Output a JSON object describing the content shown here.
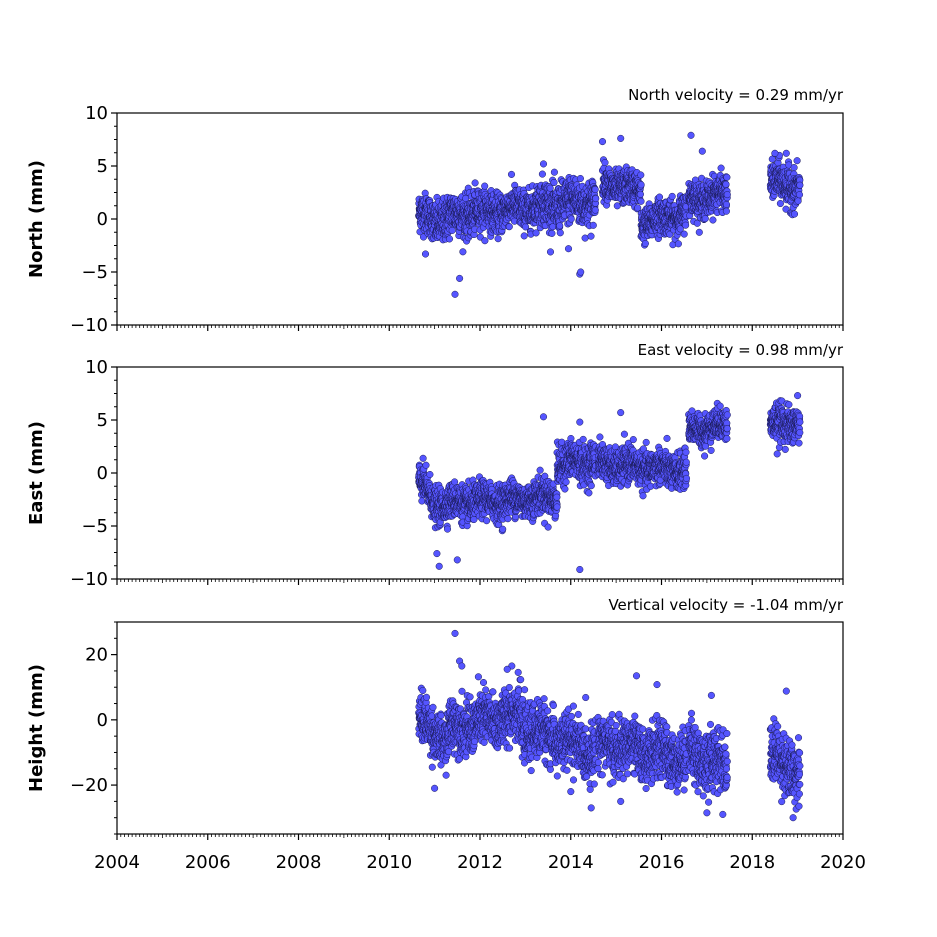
{
  "chart_data": [
    {
      "type": "scatter",
      "title": "North velocity = 0.29 mm/yr",
      "xlabel": "",
      "ylabel": "North (mm)",
      "xlim": [
        2004,
        2020
      ],
      "ylim": [
        -10,
        10
      ],
      "yticks": [
        10,
        5,
        0,
        -5,
        -10
      ],
      "ytick_labels": [
        "10",
        "5",
        "0",
        "−5",
        "−10"
      ],
      "xticks": [
        2004,
        2006,
        2008,
        2010,
        2012,
        2014,
        2016,
        2018,
        2020
      ],
      "xtick_labels": [],
      "grid": false,
      "color": "#5555ff",
      "segments": [
        {
          "start": 2010.65,
          "end": 2010.95,
          "start_mean": 0.5,
          "end_mean": 0.0,
          "spread": 1.0
        },
        {
          "start": 2010.95,
          "end": 2011.95,
          "start_mean": -0.2,
          "end_mean": 0.8,
          "spread": 1.1
        },
        {
          "start": 2011.95,
          "end": 2013.3,
          "start_mean": 0.6,
          "end_mean": 1.2,
          "spread": 1.0
        },
        {
          "start": 2013.3,
          "end": 2014.55,
          "start_mean": 1.2,
          "end_mean": 1.8,
          "spread": 1.2
        },
        {
          "start": 2014.7,
          "end": 2015.55,
          "start_mean": 3.4,
          "end_mean": 2.6,
          "spread": 0.9
        },
        {
          "start": 2015.55,
          "end": 2016.55,
          "start_mean": -0.4,
          "end_mean": 0.6,
          "spread": 0.9
        },
        {
          "start": 2016.6,
          "end": 2017.45,
          "start_mean": 1.8,
          "end_mean": 2.4,
          "spread": 0.9
        },
        {
          "start": 2018.4,
          "end": 2019.05,
          "start_mean": 3.5,
          "end_mean": 3.0,
          "spread": 1.0
        }
      ],
      "outliers": [
        [
          2011.45,
          -7.1
        ],
        [
          2011.55,
          -5.6
        ],
        [
          2014.2,
          -5.2
        ],
        [
          2014.22,
          -5.0
        ],
        [
          2013.4,
          5.2
        ],
        [
          2014.7,
          7.3
        ],
        [
          2015.1,
          7.6
        ],
        [
          2016.65,
          7.9
        ],
        [
          2016.9,
          6.4
        ],
        [
          2018.5,
          6.2
        ],
        [
          2018.75,
          6.2
        ],
        [
          2010.8,
          -3.3
        ],
        [
          2013.95,
          -2.8
        ]
      ]
    },
    {
      "type": "scatter",
      "title": "East velocity = 0.98 mm/yr",
      "xlabel": "",
      "ylabel": "East (mm)",
      "xlim": [
        2004,
        2020
      ],
      "ylim": [
        -10,
        10
      ],
      "yticks": [
        10,
        5,
        0,
        -5,
        -10
      ],
      "ytick_labels": [
        "10",
        "5",
        "0",
        "−5",
        "−10"
      ],
      "xticks": [
        2004,
        2006,
        2008,
        2010,
        2012,
        2014,
        2016,
        2018,
        2020
      ],
      "xtick_labels": [],
      "grid": false,
      "color": "#5555ff",
      "segments": [
        {
          "start": 2010.65,
          "end": 2010.95,
          "start_mean": -0.8,
          "end_mean": -2.4,
          "spread": 0.9
        },
        {
          "start": 2010.95,
          "end": 2013.7,
          "start_mean": -3.0,
          "end_mean": -2.2,
          "spread": 0.9
        },
        {
          "start": 2013.7,
          "end": 2014.55,
          "start_mean": 0.8,
          "end_mean": 1.2,
          "spread": 1.0
        },
        {
          "start": 2014.6,
          "end": 2016.55,
          "start_mean": 0.9,
          "end_mean": 0.2,
          "spread": 0.9
        },
        {
          "start": 2016.6,
          "end": 2017.45,
          "start_mean": 4.0,
          "end_mean": 4.6,
          "spread": 0.8
        },
        {
          "start": 2018.4,
          "end": 2019.05,
          "start_mean": 4.5,
          "end_mean": 4.8,
          "spread": 0.9
        }
      ],
      "outliers": [
        [
          2011.05,
          -7.6
        ],
        [
          2011.1,
          -8.8
        ],
        [
          2011.5,
          -8.2
        ],
        [
          2014.2,
          -9.1
        ],
        [
          2013.4,
          5.3
        ],
        [
          2014.2,
          4.8
        ],
        [
          2015.1,
          5.7
        ],
        [
          2016.95,
          1.6
        ],
        [
          2018.55,
          1.8
        ],
        [
          2019.0,
          7.3
        ],
        [
          2012.5,
          -5.3
        ],
        [
          2013.5,
          -5.1
        ]
      ]
    },
    {
      "type": "scatter",
      "title": "Vertical velocity = -1.04 mm/yr",
      "xlabel": "",
      "ylabel": "Height (mm)",
      "xlim": [
        2004,
        2020
      ],
      "ylim": [
        -35,
        30
      ],
      "yticks": [
        20,
        0,
        -20
      ],
      "ytick_labels": [
        "20",
        "0",
        "−20"
      ],
      "xticks": [
        2004,
        2006,
        2008,
        2010,
        2012,
        2014,
        2016,
        2018,
        2020
      ],
      "xtick_labels": [
        "2004",
        "2006",
        "2008",
        "2010",
        "2012",
        "2014",
        "2016",
        "2018",
        "2020"
      ],
      "grid": false,
      "color": "#5555ff",
      "segments": [
        {
          "start": 2010.65,
          "end": 2011.3,
          "start_mean": 0.0,
          "end_mean": -7.0,
          "spread": 4.0
        },
        {
          "start": 2011.3,
          "end": 2012.9,
          "start_mean": -3.0,
          "end_mean": 2.0,
          "spread": 4.5
        },
        {
          "start": 2012.9,
          "end": 2014.55,
          "start_mean": -2.0,
          "end_mean": -10.0,
          "spread": 4.5
        },
        {
          "start": 2014.6,
          "end": 2016.55,
          "start_mean": -7.0,
          "end_mean": -12.0,
          "spread": 4.5
        },
        {
          "start": 2016.6,
          "end": 2017.45,
          "start_mean": -10.0,
          "end_mean": -14.0,
          "spread": 5.0
        },
        {
          "start": 2018.4,
          "end": 2019.05,
          "start_mean": -11.0,
          "end_mean": -16.0,
          "spread": 5.0
        }
      ],
      "outliers": [
        [
          2011.45,
          26.5
        ],
        [
          2011.55,
          18.0
        ],
        [
          2011.6,
          16.5
        ],
        [
          2012.7,
          16.5
        ],
        [
          2012.6,
          15.5
        ],
        [
          2015.45,
          13.5
        ],
        [
          2015.9,
          10.8
        ],
        [
          2017.1,
          7.5
        ],
        [
          2018.75,
          8.8
        ],
        [
          2011.0,
          -21.0
        ],
        [
          2014.45,
          -27.0
        ],
        [
          2017.0,
          -28.5
        ],
        [
          2018.9,
          -30.0
        ],
        [
          2017.35,
          -29.0
        ],
        [
          2015.1,
          -25.0
        ],
        [
          2014.0,
          -22.0
        ]
      ]
    }
  ]
}
